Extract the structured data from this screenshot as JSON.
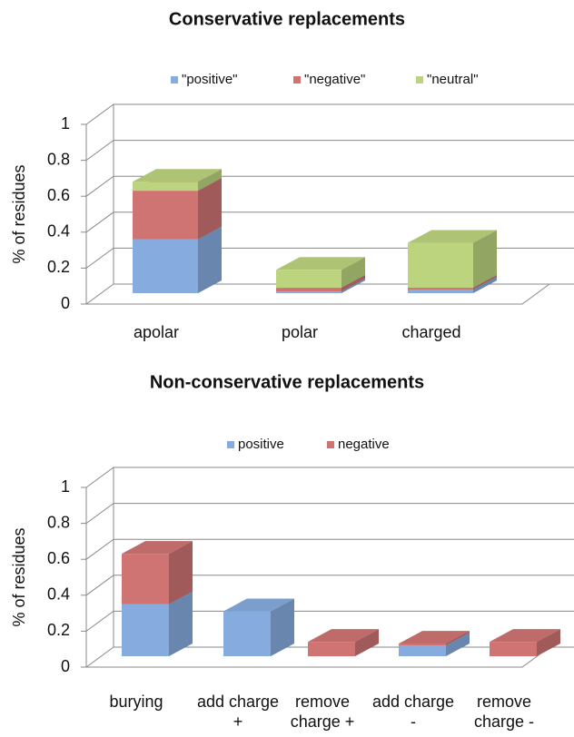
{
  "chart_data": [
    {
      "type": "bar3d_stacked",
      "title": "Conservative replacements",
      "y_label": "% of residues",
      "categories": [
        "apolar",
        "polar",
        "charged"
      ],
      "series": [
        {
          "name": "\"positive\"",
          "color": "#86acdf",
          "values": [
            0.3,
            0.01,
            0.02
          ]
        },
        {
          "name": "\"negative\"",
          "color": "#cf7473",
          "values": [
            0.27,
            0.02,
            0.01
          ]
        },
        {
          "name": "\"neutral\"",
          "color": "#bdd47e",
          "values": [
            0.05,
            0.1,
            0.25
          ]
        }
      ],
      "ylim": [
        0,
        1
      ],
      "yticks": [
        0,
        0.2,
        0.4,
        0.6,
        0.8,
        1
      ],
      "grid": true
    },
    {
      "type": "bar3d_stacked",
      "title": "Non-conservative replacements",
      "y_label": "% of residues",
      "categories": [
        "burying",
        "add charge +",
        "remove charge +",
        "add charge -",
        "remove charge -"
      ],
      "series": [
        {
          "name": "positive",
          "color": "#86acdf",
          "values": [
            0.29,
            0.25,
            0,
            0.06,
            0
          ]
        },
        {
          "name": "negative",
          "color": "#cf7473",
          "values": [
            0.28,
            0,
            0.08,
            0.01,
            0.08
          ]
        }
      ],
      "ylim": [
        0,
        1
      ],
      "yticks": [
        0,
        0.2,
        0.4,
        0.6,
        0.8,
        1
      ],
      "grid": true
    }
  ]
}
